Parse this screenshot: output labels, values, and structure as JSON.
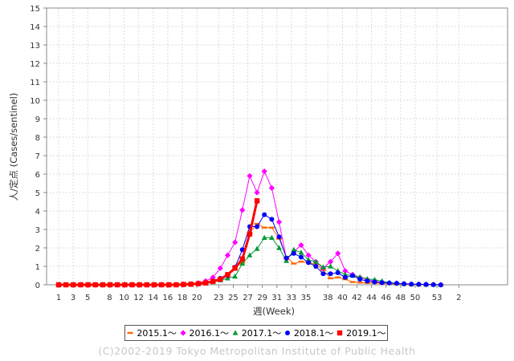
{
  "chart_data": {
    "type": "line",
    "ylabel": "人/定点 (Cases/sentinel)",
    "xlabel": "週(Week)",
    "ylim": [
      0,
      15
    ],
    "yticks": [
      0,
      1,
      2,
      3,
      4,
      5,
      6,
      7,
      8,
      9,
      10,
      11,
      12,
      13,
      14,
      15
    ],
    "x_tick_labels": [
      "1",
      "3",
      "5",
      "8",
      "10",
      "12",
      "14",
      "16",
      "18",
      "20",
      "23",
      "25",
      "27",
      "29",
      "31",
      "33",
      "35",
      "38",
      "40",
      "42",
      "44",
      "46",
      "48",
      "50",
      "53",
      "2"
    ],
    "grid": true,
    "legend_placement": "bottom",
    "series": [
      {
        "name": "2015.1～",
        "color": "#ff6600",
        "marker": "dash",
        "values": [
          0,
          0,
          0,
          0,
          0,
          0,
          0,
          0,
          0,
          0,
          0,
          0,
          0,
          0,
          0,
          0,
          0,
          0,
          0.03,
          0.05,
          0.1,
          0.15,
          0.3,
          0.5,
          1,
          1.2,
          2.8,
          3.3,
          3.1,
          3.1,
          2.5,
          1.5,
          1.15,
          1.25,
          1.2,
          1.1,
          0.8,
          0.35,
          0.4,
          0.3,
          0.15,
          0.12,
          0.1,
          0.1,
          0.08,
          0.05,
          0.04,
          0.03,
          0.02,
          0.02,
          0.01,
          0.01,
          0
        ]
      },
      {
        "name": "2016.1～",
        "color": "#ff00ff",
        "marker": "diamond",
        "values": [
          0,
          0,
          0,
          0,
          0,
          0,
          0,
          0,
          0,
          0,
          0,
          0,
          0,
          0,
          0,
          0,
          0,
          0.03,
          0.05,
          0.1,
          0.2,
          0.4,
          0.9,
          1.6,
          2.3,
          4.05,
          5.9,
          5.0,
          6.15,
          5.25,
          3.4,
          1.4,
          1.8,
          2.15,
          1.6,
          1.25,
          0.9,
          1.25,
          1.7,
          0.75,
          0.55,
          0.4,
          0.28,
          0.2,
          0.12,
          0.1,
          0.08,
          0.05,
          0.03,
          0.02,
          0.01,
          0.01,
          0
        ]
      },
      {
        "name": "2017.1～",
        "color": "#009933",
        "marker": "triangle",
        "values": [
          0,
          0,
          0,
          0,
          0,
          0,
          0,
          0,
          0,
          0,
          0,
          0,
          0,
          0,
          0,
          0,
          0,
          0.01,
          0.02,
          0.05,
          0.08,
          0.15,
          0.25,
          0.35,
          0.45,
          1.15,
          1.6,
          1.95,
          2.55,
          2.55,
          2.0,
          1.3,
          1.9,
          1.75,
          1.35,
          1.25,
          0.95,
          1.0,
          0.75,
          0.55,
          0.5,
          0.42,
          0.32,
          0.28,
          0.2,
          0.12,
          0.08,
          0.05,
          0.03,
          0.02,
          0.01,
          0.01,
          0
        ]
      },
      {
        "name": "2018.1～",
        "color": "#0000ff",
        "marker": "circle",
        "values": [
          0,
          0,
          0,
          0,
          0,
          0,
          0,
          0,
          0,
          0,
          0,
          0,
          0,
          0,
          0,
          0,
          0,
          0.01,
          0.02,
          0.05,
          0.1,
          0.2,
          0.35,
          0.5,
          0.95,
          1.9,
          3.15,
          3.15,
          3.8,
          3.55,
          2.6,
          1.45,
          1.7,
          1.5,
          1.2,
          1.0,
          0.6,
          0.6,
          0.65,
          0.4,
          0.5,
          0.3,
          0.2,
          0.15,
          0.12,
          0.1,
          0.08,
          0.06,
          0.04,
          0.03,
          0.02,
          0.01,
          0
        ]
      },
      {
        "name": "2019.1～",
        "color": "#ff0000",
        "marker": "square",
        "bold": true,
        "values": [
          0,
          0,
          0,
          0,
          0,
          0,
          0,
          0,
          0,
          0,
          0,
          0,
          0,
          0,
          0,
          0,
          0,
          0.02,
          0.03,
          0.06,
          0.1,
          0.18,
          0.3,
          0.55,
          0.9,
          1.4,
          2.75,
          4.55
        ]
      }
    ]
  },
  "copyright": "(C)2002-2019 Tokyo Metropolitan Institute of Public Health"
}
